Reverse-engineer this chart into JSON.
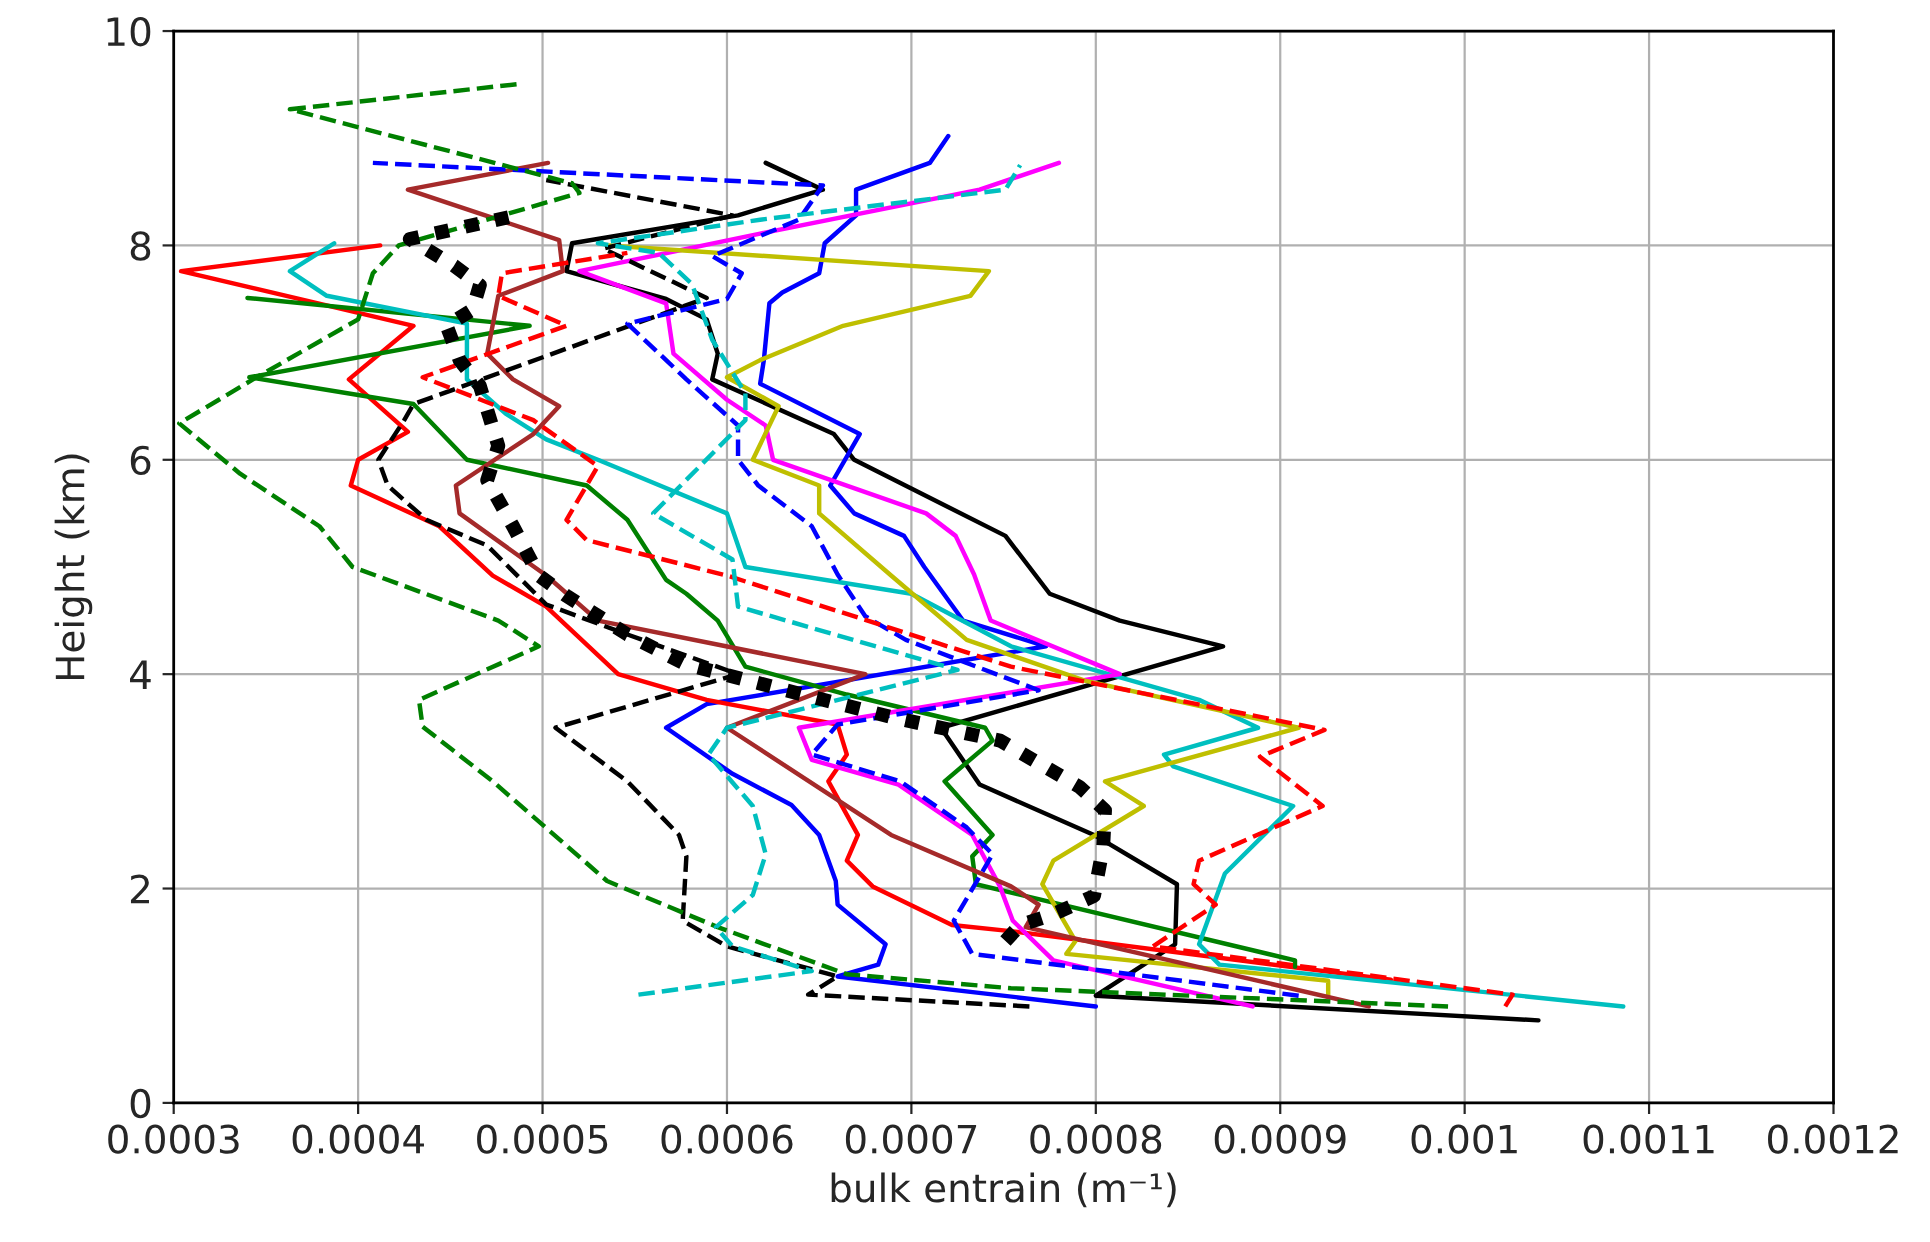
{
  "chart_data": {
    "type": "line",
    "xlabel": "bulk entrain (m⁻¹)",
    "ylabel": "Height (km)",
    "xlim": [
      0.0003,
      0.0012
    ],
    "xticks": [
      0.0003,
      0.0004,
      0.0005,
      0.0006,
      0.0007,
      0.0008,
      0.0009,
      0.001,
      0.0011,
      0.0012
    ],
    "ylim": [
      0,
      10
    ],
    "yticks": [
      0,
      2,
      4,
      6,
      8,
      10
    ],
    "grid": true,
    "series": [
      {
        "color": "#000000",
        "line_style": "solid",
        "x": [
          0.00104,
          0.0008,
          0.000843,
          0.000844,
          0.000799,
          0.000737,
          0.000716,
          0.000869,
          0.000813,
          0.000775,
          0.000751,
          0.000669,
          0.000658,
          0.000592,
          0.000595,
          0.000589,
          0.000567,
          0.000513,
          0.000516,
          0.000606,
          0.000652,
          0.000621
        ],
        "values": [
          0.77,
          1.0,
          1.48,
          2.04,
          2.5,
          2.97,
          3.5,
          4.26,
          4.5,
          4.75,
          5.29,
          6.0,
          6.24,
          6.75,
          6.99,
          7.31,
          7.5,
          7.76,
          8.02,
          8.28,
          8.52,
          8.77
        ]
      },
      {
        "color": "#0000ff",
        "line_style": "solid",
        "x": [
          0.0008,
          0.00066,
          0.000682,
          0.000686,
          0.00066,
          0.000659,
          0.00065,
          0.000635,
          0.000603,
          0.000567,
          0.000589,
          0.000773,
          0.000728,
          0.000707,
          0.000696,
          0.000669,
          0.000656,
          0.000672,
          0.000618,
          0.00062,
          0.000623,
          0.00063,
          0.00065,
          0.000653,
          0.00067,
          0.00067,
          0.00071,
          0.00072
        ],
        "values": [
          0.9,
          1.18,
          1.29,
          1.48,
          1.85,
          2.07,
          2.5,
          2.78,
          3.07,
          3.5,
          3.72,
          4.26,
          4.5,
          5.0,
          5.29,
          5.5,
          5.76,
          6.24,
          6.71,
          6.93,
          7.46,
          7.56,
          7.74,
          8.02,
          8.28,
          8.52,
          8.77,
          9.02
        ]
      },
      {
        "color": "#ff0000",
        "line_style": "solid",
        "x": [
          0.00096,
          0.000755,
          0.000722,
          0.000679,
          0.000665,
          0.000671,
          0.000655,
          0.000665,
          0.00066,
          0.000589,
          0.000541,
          0.000502,
          0.000473,
          0.000444,
          0.000396,
          0.0004,
          0.000427,
          0.000395,
          0.00043,
          0.000304,
          0.000412
        ],
        "values": [
          1.15,
          1.6,
          1.66,
          2.02,
          2.26,
          2.5,
          3.0,
          3.25,
          3.53,
          3.76,
          4.0,
          4.63,
          4.92,
          5.38,
          5.76,
          6.0,
          6.26,
          6.75,
          7.25,
          7.76,
          8.0
        ]
      },
      {
        "color": "#008000",
        "line_style": "solid",
        "x": [
          0.000908,
          0.000908,
          0.000735,
          0.000733,
          0.000744,
          0.000718,
          0.000744,
          0.00074,
          0.000665,
          0.00061,
          0.000595,
          0.000578,
          0.000567,
          0.000546,
          0.000524,
          0.000459,
          0.00043,
          0.000341,
          0.000493,
          0.00034
        ],
        "values": [
          1.27,
          1.33,
          2.04,
          2.3,
          2.5,
          3.0,
          3.38,
          3.5,
          3.81,
          4.07,
          4.5,
          4.75,
          4.88,
          5.44,
          5.76,
          6.0,
          6.52,
          6.77,
          7.25,
          7.51
        ]
      },
      {
        "color": "#00bfbf",
        "line_style": "solid",
        "x": [
          0.001086,
          0.000867,
          0.000856,
          0.00087,
          0.000907,
          0.000842,
          0.000837,
          0.000888,
          0.000856,
          0.000754,
          0.0007,
          0.00061,
          0.0006,
          0.00053,
          0.000502,
          0.00048,
          0.000459,
          0.000459,
          0.000383,
          0.000363,
          0.000387
        ],
        "values": [
          0.9,
          1.29,
          1.48,
          2.14,
          2.77,
          3.14,
          3.25,
          3.5,
          3.76,
          4.26,
          4.75,
          5.0,
          5.5,
          6.0,
          6.19,
          6.43,
          6.75,
          7.27,
          7.53,
          7.76,
          8.02
        ]
      },
      {
        "color": "#ff00ff",
        "line_style": "solid",
        "x": [
          0.000885,
          0.000777,
          0.000755,
          0.000748,
          0.000733,
          0.000693,
          0.000646,
          0.000639,
          0.000813,
          0.000743,
          0.000734,
          0.000724,
          0.000708,
          0.000625,
          0.000621,
          0.0006,
          0.000571,
          0.000567,
          0.00052,
          0.000618,
          0.000737,
          0.00078
        ],
        "values": [
          0.9,
          1.33,
          1.7,
          2.02,
          2.5,
          2.97,
          3.2,
          3.5,
          4.0,
          4.5,
          4.93,
          5.29,
          5.5,
          6.0,
          6.32,
          6.56,
          6.99,
          7.46,
          7.76,
          8.11,
          8.52,
          8.77
        ]
      },
      {
        "color": "#bfbf00",
        "line_style": "solid",
        "x": [
          0.000926,
          0.000926,
          0.000784,
          0.000789,
          0.000771,
          0.000777,
          0.000826,
          0.000805,
          0.00091,
          0.000794,
          0.00073,
          0.000689,
          0.00065,
          0.00065,
          0.000614,
          0.000628,
          0.0006,
          0.000618,
          0.000663,
          0.000732,
          0.000742,
          0.000536
        ],
        "values": [
          1.0,
          1.14,
          1.39,
          1.51,
          2.04,
          2.26,
          2.77,
          3.0,
          3.5,
          3.94,
          4.32,
          4.92,
          5.5,
          5.76,
          6.0,
          6.5,
          6.77,
          6.93,
          7.25,
          7.53,
          7.76,
          8.0
        ]
      },
      {
        "color": "#a52a2a",
        "line_style": "solid",
        "x": [
          0.000948,
          0.000762,
          0.000769,
          0.000754,
          0.000689,
          0.0006,
          0.000675,
          0.00053,
          0.000502,
          0.000455,
          0.000453,
          0.000495,
          0.000509,
          0.000484,
          0.00047,
          0.000476,
          0.000511,
          0.000509,
          0.000427,
          0.000503
        ],
        "values": [
          0.9,
          1.64,
          1.85,
          2.02,
          2.5,
          3.5,
          4.0,
          4.5,
          4.92,
          5.5,
          5.76,
          6.24,
          6.5,
          6.75,
          6.99,
          7.53,
          7.76,
          8.05,
          8.52,
          8.77
        ]
      },
      {
        "color": "#000000",
        "line_style": "dashed",
        "x": [
          0.000764,
          0.000644,
          0.00066,
          0.0006,
          0.000576,
          0.000578,
          0.000574,
          0.000546,
          0.000507,
          0.000606,
          0.000546,
          0.000502,
          0.00047,
          0.000437,
          0.000416,
          0.000411,
          0.000425,
          0.00043,
          0.000589,
          0.000533,
          0.000603,
          0.000502
        ],
        "values": [
          0.9,
          1.01,
          1.18,
          1.46,
          1.7,
          2.3,
          2.5,
          3.0,
          3.5,
          4.0,
          4.37,
          4.65,
          5.2,
          5.44,
          5.76,
          6.0,
          6.37,
          6.52,
          7.51,
          7.97,
          8.28,
          8.61
        ]
      },
      {
        "color": "#0000ff",
        "line_style": "dashed",
        "x": [
          0.00091,
          0.000733,
          0.000723,
          0.000744,
          0.00073,
          0.000694,
          0.000646,
          0.00066,
          0.000769,
          0.000697,
          0.000675,
          0.00066,
          0.000646,
          0.000617,
          0.000606,
          0.000606,
          0.000578,
          0.000567,
          0.000546,
          0.0006,
          0.000608,
          0.000592,
          0.000639,
          0.000652,
          0.000408
        ],
        "values": [
          1.0,
          1.39,
          1.7,
          2.32,
          2.57,
          3.0,
          3.25,
          3.53,
          3.85,
          4.32,
          4.54,
          4.93,
          5.38,
          5.76,
          6.0,
          6.32,
          6.75,
          6.93,
          7.27,
          7.5,
          7.74,
          7.9,
          8.24,
          8.56,
          8.77
        ]
      },
      {
        "color": "#ff0000",
        "line_style": "dashed",
        "x": [
          0.001022,
          0.001026,
          0.000831,
          0.000865,
          0.000853,
          0.000856,
          0.000923,
          0.000889,
          0.000924,
          0.000754,
          0.0006,
          0.000524,
          0.000513,
          0.00053,
          0.000495,
          0.000435,
          0.000513,
          0.000476,
          0.000478,
          0.000546
        ],
        "values": [
          0.9,
          1.01,
          1.46,
          1.85,
          2.04,
          2.26,
          2.77,
          3.23,
          3.48,
          4.07,
          4.92,
          5.25,
          5.44,
          5.94,
          6.37,
          6.77,
          7.25,
          7.53,
          7.74,
          7.93
        ]
      },
      {
        "color": "#008000",
        "line_style": "dashed",
        "x": [
          0.000991,
          0.000754,
          0.000665,
          0.000595,
          0.000535,
          0.000473,
          0.000435,
          0.000433,
          0.000498,
          0.000476,
          0.000397,
          0.000379,
          0.000336,
          0.000303,
          0.000343,
          0.0004,
          0.000408,
          0.000422,
          0.00052,
          0.000516,
          0.000363,
          0.000489
        ],
        "values": [
          0.9,
          1.07,
          1.2,
          1.64,
          2.07,
          3.0,
          3.51,
          3.76,
          4.26,
          4.5,
          5.0,
          5.38,
          5.87,
          6.34,
          6.75,
          7.31,
          7.74,
          8.0,
          8.49,
          8.58,
          9.27,
          9.51
        ]
      },
      {
        "color": "#00bfbf",
        "line_style": "dashed",
        "x": [
          0.000552,
          0.000646,
          0.000603,
          0.000594,
          0.000614,
          0.000621,
          0.000614,
          0.00059,
          0.0006,
          0.000725,
          0.000606,
          0.000603,
          0.00056,
          0.00061,
          0.00061,
          0.000592,
          0.000581,
          0.000563,
          0.00053,
          0.000618,
          0.000751,
          0.000759
        ],
        "values": [
          1.01,
          1.23,
          1.46,
          1.64,
          1.94,
          2.32,
          2.77,
          3.25,
          3.5,
          4.04,
          4.63,
          5.07,
          5.5,
          6.37,
          6.62,
          7.12,
          7.64,
          7.93,
          8.02,
          8.24,
          8.52,
          8.75
        ]
      },
      {
        "color": "#000000",
        "line_style": "dotted",
        "x": [
          0.000751,
          0.000759,
          0.000777,
          0.000799,
          0.000804,
          0.000805,
          0.000791,
          0.000748,
          0.000689,
          0.000632,
          0.000578,
          0.000546,
          0.000513,
          0.000498,
          0.000484,
          0.00047,
          0.000476,
          0.000466,
          0.000455,
          0.000448,
          0.000462,
          0.000466,
          0.000452,
          0.000428,
          0.000486
        ],
        "values": [
          1.51,
          1.66,
          1.76,
          1.93,
          2.39,
          2.73,
          2.95,
          3.38,
          3.6,
          3.85,
          4.09,
          4.37,
          4.73,
          4.92,
          5.38,
          5.81,
          6.13,
          6.69,
          6.93,
          7.25,
          7.4,
          7.63,
          7.81,
          8.06,
          8.28
        ]
      }
    ]
  }
}
